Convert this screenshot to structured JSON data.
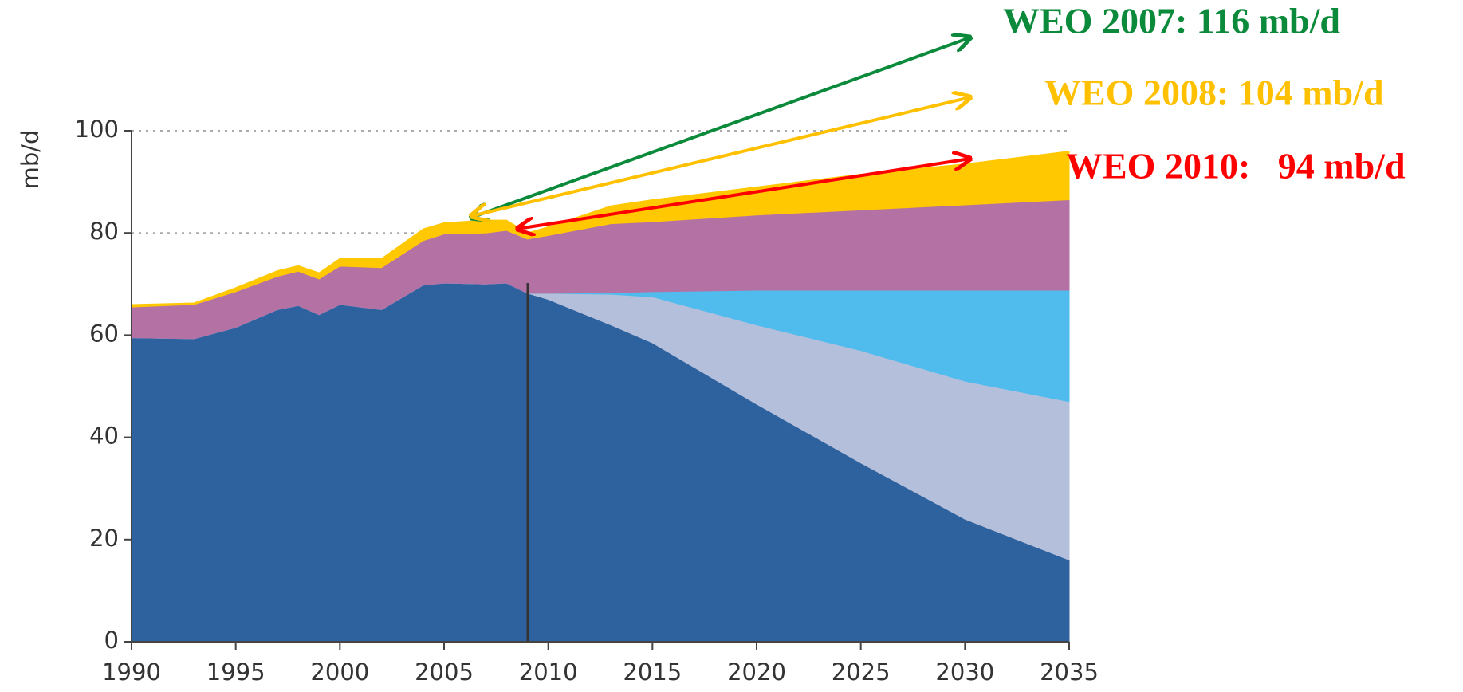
{
  "chart_data": {
    "type": "stacked-area",
    "y_label": "mb/d",
    "x": [
      1990,
      1993,
      1995,
      1997,
      1998,
      1999,
      2000,
      2002,
      2004,
      2005,
      2007,
      2008,
      2009,
      2010,
      2013,
      2015,
      2020,
      2025,
      2030,
      2035
    ],
    "xlim": [
      1990,
      2035
    ],
    "xticks": [
      1990,
      1995,
      2000,
      2005,
      2010,
      2015,
      2020,
      2025,
      2030,
      2035
    ],
    "ylim": [
      0,
      100
    ],
    "yticks": [
      0,
      20,
      40,
      60,
      80,
      100
    ],
    "grid": true,
    "series": [
      {
        "color": "#2e629e",
        "values": [
          59.5,
          59.3,
          61.5,
          65,
          65.8,
          64,
          66,
          65,
          69.8,
          70.2,
          70,
          70.2,
          68.2,
          67,
          62,
          58.5,
          46.5,
          35,
          24,
          16
        ]
      },
      {
        "color": "#b4bfdc",
        "values": [
          0,
          0,
          0,
          0,
          0,
          0,
          0,
          0,
          0,
          0,
          0,
          0,
          0,
          1.2,
          6,
          9,
          15.5,
          22,
          27,
          31
        ]
      },
      {
        "color": "#50bced",
        "values": [
          0,
          0,
          0,
          0,
          0,
          0,
          0,
          0,
          0,
          0,
          0,
          0,
          0,
          0,
          0.3,
          1,
          6.8,
          11.8,
          17.8,
          21.8
        ]
      },
      {
        "color": "#b472a4",
        "values": [
          6,
          6.7,
          7,
          6.5,
          6.7,
          7,
          7.5,
          8.2,
          8.7,
          9.6,
          10,
          10.3,
          10.6,
          11.3,
          13.5,
          13.7,
          14.7,
          15.7,
          16.7,
          17.7
        ]
      },
      {
        "color": "#ffc800",
        "values": [
          0.5,
          0.3,
          0.8,
          1.1,
          1.1,
          1.2,
          1.5,
          1.8,
          2.3,
          2.2,
          2.5,
          2,
          1.2,
          1.7,
          3.5,
          4.3,
          5.5,
          7,
          8,
          9.5
        ]
      }
    ],
    "annotations": [
      {
        "text": "WEO 2007: 116 mb/d",
        "color": "#0a8a3a"
      },
      {
        "text": "WEO 2008: 104 mb/d",
        "color": "#ffc000"
      },
      {
        "text": "WEO 2010:   94 mb/d",
        "color": "#ff0000"
      }
    ]
  }
}
